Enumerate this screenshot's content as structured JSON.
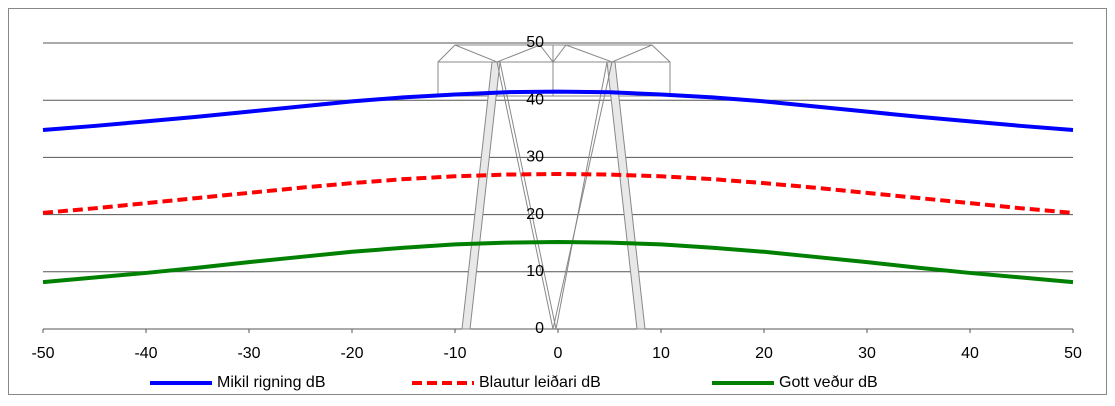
{
  "chart_data": {
    "type": "line",
    "x": [
      -50,
      -45,
      -40,
      -35,
      -30,
      -25,
      -20,
      -15,
      -10,
      -5,
      0,
      5,
      10,
      15,
      20,
      25,
      30,
      35,
      40,
      45,
      50
    ],
    "series": [
      {
        "name": "Mikil rigning dB",
        "color": "#0000ff",
        "dash": false,
        "values": [
          34.8,
          35.5,
          36.3,
          37.1,
          38,
          38.9,
          39.8,
          40.5,
          41,
          41.4,
          41.5,
          41.4,
          41,
          40.5,
          39.8,
          38.9,
          38,
          37.1,
          36.3,
          35.5,
          34.8
        ]
      },
      {
        "name": "Blautur leiðari dB",
        "color": "#ff0000",
        "dash": true,
        "values": [
          20.3,
          21.1,
          22,
          22.9,
          23.8,
          24.7,
          25.5,
          26.2,
          26.7,
          27,
          27.1,
          27,
          26.7,
          26.2,
          25.5,
          24.7,
          23.8,
          22.9,
          22,
          21.1,
          20.3
        ]
      },
      {
        "name": "Gott veður dB",
        "color": "#008000",
        "dash": false,
        "values": [
          8.2,
          9,
          9.8,
          10.7,
          11.7,
          12.6,
          13.5,
          14.2,
          14.8,
          15.1,
          15.2,
          15.1,
          14.8,
          14.2,
          13.5,
          12.6,
          11.7,
          10.7,
          9.8,
          9,
          8.2
        ]
      }
    ],
    "xlim": [
      -50,
      50
    ],
    "xticks": [
      -50,
      -40,
      -30,
      -20,
      -10,
      0,
      10,
      20,
      30,
      40,
      50
    ],
    "ylim": [
      0,
      50
    ],
    "yticks": [
      0,
      10,
      20,
      30,
      40,
      50
    ],
    "grid": true,
    "legend": "bottom"
  }
}
